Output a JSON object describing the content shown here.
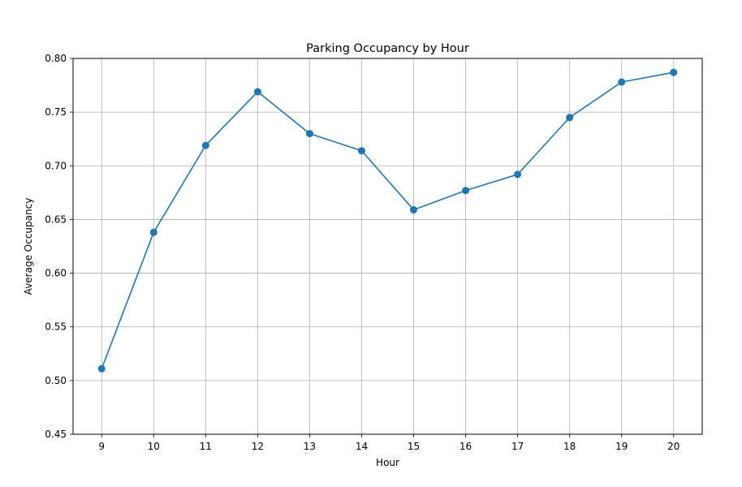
{
  "chart_data": {
    "type": "line",
    "title": "Parking Occupancy by Hour",
    "xlabel": "Hour",
    "ylabel": "Average Occupancy",
    "x": [
      9,
      10,
      11,
      12,
      13,
      14,
      15,
      16,
      17,
      18,
      19,
      20
    ],
    "x_tick_labels": [
      "9",
      "10",
      "11",
      "12",
      "13",
      "14",
      "15",
      "16",
      "17",
      "18",
      "19",
      "20"
    ],
    "series": [
      {
        "values": [
          0.511,
          0.638,
          0.719,
          0.769,
          0.73,
          0.714,
          0.659,
          0.677,
          0.692,
          0.745,
          0.778,
          0.787
        ],
        "color": "#1f77b4",
        "marker": "circle"
      }
    ],
    "xlim": [
      8.45,
      20.55
    ],
    "ylim": [
      0.45,
      0.8
    ],
    "y_ticks": [
      0.45,
      0.5,
      0.55,
      0.6,
      0.65,
      0.7,
      0.75,
      0.8
    ],
    "y_tick_labels": [
      "0.45",
      "0.50",
      "0.55",
      "0.60",
      "0.65",
      "0.70",
      "0.75",
      "0.80"
    ],
    "grid": true,
    "legend": "none"
  }
}
